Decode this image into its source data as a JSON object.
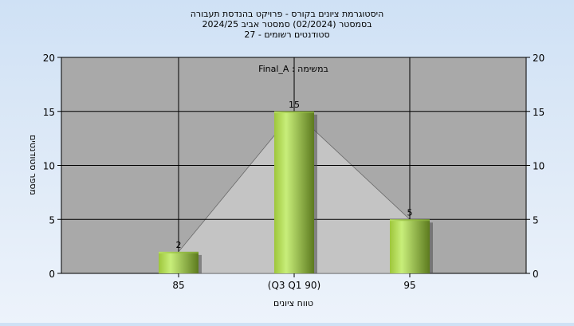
{
  "chart_data": {
    "type": "bar",
    "title_lines": [
      "היסטוגרמת ציונים בקורס - פרויקט בהנדסת תעבורה",
      "בסמסטר  (02/2024)  סמסטר אביב 2024/25",
      "סטודנטים רשומים - 27"
    ],
    "annotation": "במשימה : Final_A",
    "categories": [
      "85",
      "(Q3 Q1 90)",
      "95"
    ],
    "values": [
      2,
      15,
      5
    ],
    "value_labels": [
      "2",
      "15",
      "5"
    ],
    "xlabel": "טווח ציונים",
    "ylabel": "מספר סטודנטים",
    "ylim": [
      0,
      20
    ],
    "yticks": [
      0,
      5,
      10,
      15,
      20
    ],
    "ytick_labels": [
      "0",
      "5",
      "10",
      "15",
      "20"
    ],
    "grid": true,
    "colors": {
      "plot_bg": "#a9a9a9",
      "area_fill": "#c4c4c4",
      "bar_light": "#c8ee7a",
      "bar_dark": "#5c7a1e",
      "grid": "#000000"
    }
  }
}
